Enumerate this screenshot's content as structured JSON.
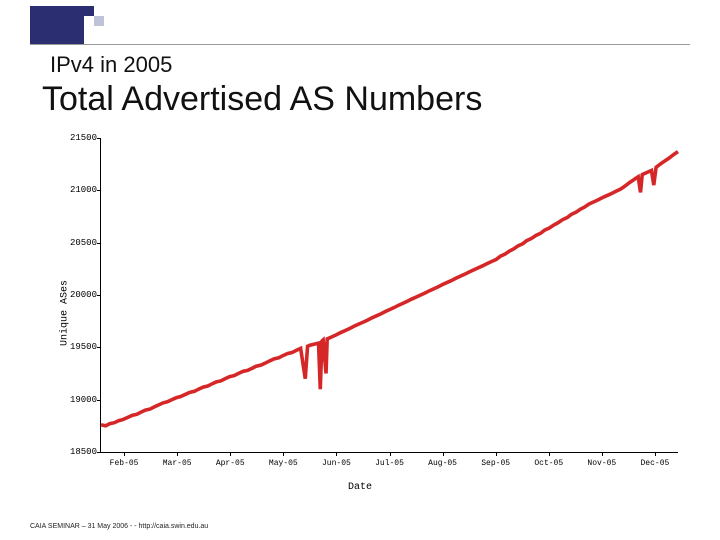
{
  "header": {
    "subtitle": "IPv4 in 2005",
    "title": "Total Advertised AS Numbers"
  },
  "footer": "CAIA SEMINAR – 31 May 2006 - - http://caia.swin.edu.au",
  "chart": {
    "type": "line",
    "ylabel": "Unique ASes",
    "xlabel": "Date",
    "ylim": [
      18500,
      21500
    ],
    "yticks": [
      18500,
      19000,
      19500,
      20000,
      20500,
      21000,
      21500
    ],
    "xcategories": [
      "Feb-05",
      "Mar-05",
      "Apr-05",
      "May-05",
      "Jun-05",
      "Jul-05",
      "Aug-05",
      "Sep-05",
      "Oct-05",
      "Nov-05",
      "Dec-05"
    ],
    "line_color": "#d62728",
    "line_width": 1.2,
    "background_color": "#ffffff",
    "data": [
      [
        0.0,
        18760
      ],
      [
        0.008,
        18750
      ],
      [
        0.015,
        18770
      ],
      [
        0.023,
        18780
      ],
      [
        0.031,
        18800
      ],
      [
        0.038,
        18810
      ],
      [
        0.046,
        18830
      ],
      [
        0.054,
        18850
      ],
      [
        0.062,
        18860
      ],
      [
        0.069,
        18880
      ],
      [
        0.077,
        18900
      ],
      [
        0.085,
        18910
      ],
      [
        0.092,
        18930
      ],
      [
        0.1,
        18950
      ],
      [
        0.108,
        18970
      ],
      [
        0.115,
        18980
      ],
      [
        0.123,
        19000
      ],
      [
        0.131,
        19020
      ],
      [
        0.138,
        19030
      ],
      [
        0.146,
        19050
      ],
      [
        0.154,
        19070
      ],
      [
        0.162,
        19080
      ],
      [
        0.169,
        19100
      ],
      [
        0.177,
        19120
      ],
      [
        0.185,
        19130
      ],
      [
        0.192,
        19150
      ],
      [
        0.2,
        19170
      ],
      [
        0.208,
        19180
      ],
      [
        0.215,
        19200
      ],
      [
        0.223,
        19220
      ],
      [
        0.231,
        19230
      ],
      [
        0.238,
        19250
      ],
      [
        0.246,
        19270
      ],
      [
        0.254,
        19280
      ],
      [
        0.262,
        19300
      ],
      [
        0.269,
        19320
      ],
      [
        0.277,
        19330
      ],
      [
        0.285,
        19350
      ],
      [
        0.292,
        19370
      ],
      [
        0.3,
        19390
      ],
      [
        0.308,
        19400
      ],
      [
        0.315,
        19420
      ],
      [
        0.323,
        19440
      ],
      [
        0.331,
        19450
      ],
      [
        0.338,
        19470
      ],
      [
        0.346,
        19490
      ],
      [
        0.354,
        19200
      ],
      [
        0.358,
        19510
      ],
      [
        0.362,
        19520
      ],
      [
        0.369,
        19530
      ],
      [
        0.377,
        19540
      ],
      [
        0.38,
        19100
      ],
      [
        0.383,
        19560
      ],
      [
        0.385,
        19570
      ],
      [
        0.39,
        19250
      ],
      [
        0.392,
        19580
      ],
      [
        0.4,
        19600
      ],
      [
        0.408,
        19620
      ],
      [
        0.415,
        19640
      ],
      [
        0.423,
        19660
      ],
      [
        0.431,
        19680
      ],
      [
        0.438,
        19700
      ],
      [
        0.446,
        19720
      ],
      [
        0.454,
        19740
      ],
      [
        0.462,
        19760
      ],
      [
        0.469,
        19780
      ],
      [
        0.477,
        19800
      ],
      [
        0.485,
        19820
      ],
      [
        0.492,
        19840
      ],
      [
        0.5,
        19860
      ],
      [
        0.508,
        19880
      ],
      [
        0.515,
        19900
      ],
      [
        0.523,
        19920
      ],
      [
        0.531,
        19940
      ],
      [
        0.538,
        19960
      ],
      [
        0.546,
        19980
      ],
      [
        0.554,
        20000
      ],
      [
        0.562,
        20020
      ],
      [
        0.569,
        20040
      ],
      [
        0.577,
        20060
      ],
      [
        0.585,
        20080
      ],
      [
        0.592,
        20100
      ],
      [
        0.6,
        20120
      ],
      [
        0.608,
        20140
      ],
      [
        0.615,
        20160
      ],
      [
        0.623,
        20180
      ],
      [
        0.631,
        20200
      ],
      [
        0.638,
        20220
      ],
      [
        0.646,
        20240
      ],
      [
        0.654,
        20260
      ],
      [
        0.662,
        20280
      ],
      [
        0.669,
        20300
      ],
      [
        0.677,
        20320
      ],
      [
        0.685,
        20340
      ],
      [
        0.692,
        20370
      ],
      [
        0.7,
        20390
      ],
      [
        0.708,
        20420
      ],
      [
        0.715,
        20440
      ],
      [
        0.723,
        20470
      ],
      [
        0.731,
        20490
      ],
      [
        0.738,
        20520
      ],
      [
        0.746,
        20540
      ],
      [
        0.754,
        20570
      ],
      [
        0.762,
        20590
      ],
      [
        0.769,
        20620
      ],
      [
        0.777,
        20640
      ],
      [
        0.785,
        20670
      ],
      [
        0.792,
        20690
      ],
      [
        0.8,
        20720
      ],
      [
        0.808,
        20740
      ],
      [
        0.815,
        20770
      ],
      [
        0.823,
        20790
      ],
      [
        0.831,
        20820
      ],
      [
        0.838,
        20840
      ],
      [
        0.846,
        20870
      ],
      [
        0.854,
        20890
      ],
      [
        0.862,
        20910
      ],
      [
        0.869,
        20930
      ],
      [
        0.877,
        20950
      ],
      [
        0.885,
        20970
      ],
      [
        0.892,
        20990
      ],
      [
        0.9,
        21010
      ],
      [
        0.908,
        21040
      ],
      [
        0.915,
        21070
      ],
      [
        0.923,
        21100
      ],
      [
        0.931,
        21130
      ],
      [
        0.935,
        20980
      ],
      [
        0.938,
        21150
      ],
      [
        0.946,
        21170
      ],
      [
        0.954,
        21190
      ],
      [
        0.958,
        21050
      ],
      [
        0.962,
        21220
      ],
      [
        0.969,
        21250
      ],
      [
        0.977,
        21280
      ],
      [
        0.985,
        21310
      ],
      [
        0.992,
        21340
      ],
      [
        1.0,
        21370
      ]
    ]
  }
}
